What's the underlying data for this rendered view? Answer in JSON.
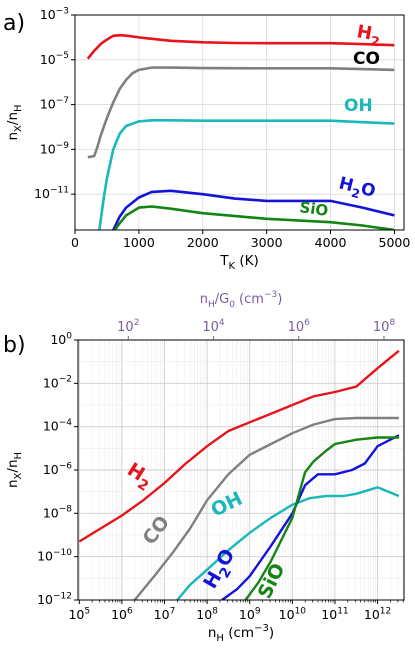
{
  "chart_data": [
    {
      "panel_label": "a)",
      "type": "line",
      "xlabel": "T$_K$ (K)",
      "ylabel": "n$_X$/n$_H$",
      "xlim": [
        0,
        5150
      ],
      "ylim_log10": [
        -12.6,
        -3.0
      ],
      "yscale": "log",
      "grid": true,
      "x_ticks": [
        "0",
        "1000",
        "2000",
        "3000",
        "4000",
        "5000"
      ],
      "y_ticks": [
        "10^-3",
        "10^-5",
        "10^-7",
        "10^-9",
        "10^-11"
      ],
      "series": [
        {
          "name": "H$_2$",
          "color": "#e8141c",
          "x": [
            200,
            300,
            400,
            500,
            600,
            700,
            800,
            1000,
            1500,
            2000,
            2500,
            3000,
            3500,
            4000,
            4500,
            5000
          ],
          "log10_y": [
            -4.95,
            -4.6,
            -4.3,
            -4.1,
            -3.93,
            -3.9,
            -3.92,
            -4.0,
            -4.15,
            -4.22,
            -4.25,
            -4.26,
            -4.26,
            -4.26,
            -4.3,
            -4.35
          ]
        },
        {
          "name": "CO",
          "color": "#808080",
          "x": [
            200,
            300,
            350,
            400,
            500,
            600,
            700,
            800,
            900,
            1000,
            1200,
            1500,
            2000,
            3000,
            4000,
            5000
          ],
          "log10_y": [
            -9.35,
            -9.3,
            -8.9,
            -8.4,
            -7.6,
            -6.9,
            -6.3,
            -5.9,
            -5.6,
            -5.45,
            -5.35,
            -5.35,
            -5.37,
            -5.38,
            -5.38,
            -5.45
          ]
        },
        {
          "name": "OH",
          "color": "#1ab7bb",
          "x": [
            380,
            450,
            500,
            600,
            700,
            800,
            1000,
            1200,
            1500,
            2000,
            3000,
            4000,
            5000
          ],
          "log10_y": [
            -12.6,
            -11.2,
            -10.3,
            -9.0,
            -8.3,
            -7.95,
            -7.75,
            -7.7,
            -7.7,
            -7.72,
            -7.72,
            -7.72,
            -7.85
          ]
        },
        {
          "name": "H$_2$O",
          "color": "#1414d8",
          "x": [
            600,
            700,
            800,
            1000,
            1200,
            1500,
            2000,
            2500,
            3000,
            4000,
            4500,
            5000
          ],
          "log10_y": [
            -12.6,
            -12.0,
            -11.6,
            -11.15,
            -10.9,
            -10.85,
            -11.0,
            -11.2,
            -11.3,
            -11.3,
            -11.6,
            -11.95
          ]
        },
        {
          "name": "SiO",
          "color": "#138513",
          "x": [
            620,
            700,
            800,
            1000,
            1200,
            1500,
            2000,
            3000,
            4000,
            4500,
            5000
          ],
          "log10_y": [
            -12.6,
            -12.3,
            -11.95,
            -11.6,
            -11.55,
            -11.65,
            -11.85,
            -12.1,
            -12.25,
            -12.4,
            -12.6
          ]
        }
      ]
    },
    {
      "panel_label": "b)",
      "type": "line",
      "xlabel": "n$_H$ (cm$^{-3}$)",
      "ylabel": "n$_X$/n$_H$",
      "top_xlabel": "n$_H$/G$_0$ (cm$^{-3}$)",
      "xscale": "log",
      "yscale": "log",
      "xlim_log10": [
        4.97,
        12.62
      ],
      "ylim_log10": [
        -12,
        0
      ],
      "grid": true,
      "x_ticks": [
        "10^5",
        "10^6",
        "10^7",
        "10^8",
        "10^9",
        "10^10",
        "10^11",
        "10^12"
      ],
      "y_ticks": [
        "10^0",
        "10^-2",
        "10^-4",
        "10^-6",
        "10^-8",
        "10^-10",
        "10^-12"
      ],
      "top_ticks": [
        "10^2",
        "10^4",
        "10^6",
        "10^8"
      ],
      "top_tick_positions_log10_nH": [
        6.15,
        8.15,
        10.15,
        12.15
      ],
      "series": [
        {
          "name": "H$_2$",
          "color": "#e8141c",
          "x_log10": [
            5.0,
            6.0,
            6.5,
            7.0,
            7.5,
            8.0,
            8.5,
            9.0,
            9.5,
            10.0,
            10.5,
            11.0,
            11.5,
            12.0,
            12.5
          ],
          "log10_y": [
            -9.3,
            -8.1,
            -7.4,
            -6.6,
            -5.7,
            -4.9,
            -4.2,
            -3.8,
            -3.4,
            -3.0,
            -2.6,
            -2.4,
            -2.15,
            -1.3,
            -0.5
          ]
        },
        {
          "name": "CO",
          "color": "#808080",
          "x_log10": [
            6.3,
            6.8,
            7.2,
            7.6,
            8.0,
            8.5,
            9.0,
            9.5,
            10.0,
            10.5,
            11.0,
            11.5,
            12.0,
            12.5
          ],
          "log10_y": [
            -12.0,
            -10.8,
            -9.8,
            -8.7,
            -7.4,
            -6.2,
            -5.3,
            -4.8,
            -4.3,
            -3.9,
            -3.65,
            -3.6,
            -3.6,
            -3.6
          ]
        },
        {
          "name": "OH",
          "color": "#1ab7bb",
          "x_log10": [
            7.3,
            7.6,
            8.0,
            8.5,
            9.0,
            9.5,
            10.0,
            10.4,
            10.8,
            11.2,
            11.5,
            12.0,
            12.5
          ],
          "log10_y": [
            -12.0,
            -11.3,
            -10.6,
            -9.7,
            -8.9,
            -8.2,
            -7.6,
            -7.3,
            -7.2,
            -7.2,
            -7.1,
            -6.8,
            -7.2
          ]
        },
        {
          "name": "H$_2$O",
          "color": "#1414d8",
          "x_log10": [
            8.35,
            8.7,
            9.0,
            9.5,
            10.0,
            10.3,
            10.6,
            11.0,
            11.4,
            11.7,
            12.0,
            12.5
          ],
          "log10_y": [
            -12.0,
            -11.5,
            -10.9,
            -9.5,
            -8.0,
            -6.7,
            -6.2,
            -6.2,
            -6.0,
            -5.7,
            -4.9,
            -4.4
          ]
        },
        {
          "name": "SiO",
          "color": "#138513",
          "x_log10": [
            8.9,
            9.2,
            9.5,
            10.0,
            10.3,
            10.5,
            10.8,
            11.0,
            11.5,
            12.0,
            12.5
          ],
          "log10_y": [
            -12.0,
            -11.2,
            -10.2,
            -8.2,
            -6.1,
            -5.6,
            -5.1,
            -4.8,
            -4.6,
            -4.5,
            -4.5
          ]
        }
      ]
    }
  ]
}
